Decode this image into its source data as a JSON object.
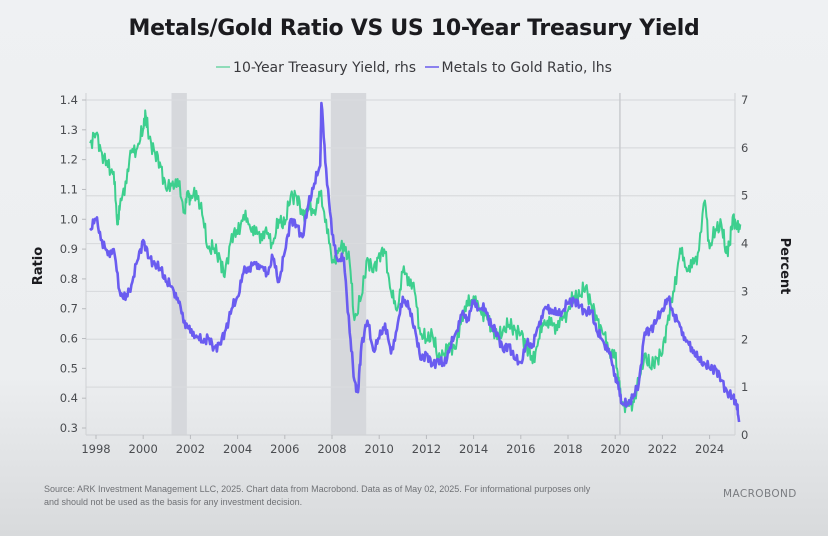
{
  "chart_data": {
    "type": "line",
    "title": "Metals/Gold Ratio VS US 10-Year Treasury Yield",
    "legend": [
      {
        "name": "10-Year Treasury Yield, rhs",
        "color": "#3dcf8e"
      },
      {
        "name": "Metals to Gold Ratio, lhs",
        "color": "#6a5cf0"
      }
    ],
    "legend_position": "top-center",
    "ylabel_left": "Ratio",
    "ylabel_right": "Percent",
    "xlabel": "",
    "ylim_left": [
      0.3,
      1.4
    ],
    "ylim_right": [
      0,
      7
    ],
    "xlim": [
      1997.7,
      2025.6
    ],
    "x_ticks": [
      "1998",
      "2000",
      "2002",
      "2004",
      "2006",
      "2008",
      "2010",
      "2012",
      "2014",
      "2016",
      "2018",
      "2020",
      "2022",
      "2024"
    ],
    "y_ticks_left": [
      "0.3",
      "0.4",
      "0.5",
      "0.6",
      "0.7",
      "0.8",
      "0.9",
      "1.0",
      "1.1",
      "1.2",
      "1.3",
      "1.4"
    ],
    "y_ticks_right": [
      "0",
      "1",
      "2",
      "3",
      "4",
      "5",
      "6",
      "7"
    ],
    "grid": "horizontal",
    "shaded_periods": [
      [
        2001.2,
        2001.85
      ],
      [
        2007.95,
        2009.45
      ]
    ],
    "vertical_marker": 2020.2,
    "series": [
      {
        "name": "10-Year Treasury Yield, rhs",
        "axis": "right",
        "x": [
          1997.75,
          1998.0,
          1998.25,
          1998.5,
          1998.75,
          1998.9,
          1999.0,
          1999.25,
          1999.5,
          1999.75,
          2000.0,
          2000.1,
          2000.25,
          2000.5,
          2000.75,
          2001.0,
          2001.25,
          2001.5,
          2001.75,
          2001.9,
          2002.0,
          2002.25,
          2002.5,
          2002.75,
          2003.0,
          2003.25,
          2003.45,
          2003.75,
          2004.0,
          2004.25,
          2004.5,
          2004.75,
          2005.0,
          2005.25,
          2005.5,
          2005.75,
          2006.0,
          2006.25,
          2006.5,
          2006.75,
          2007.0,
          2007.25,
          2007.5,
          2007.75,
          2008.0,
          2008.25,
          2008.5,
          2008.75,
          2008.95,
          2009.25,
          2009.5,
          2009.75,
          2010.0,
          2010.25,
          2010.5,
          2010.75,
          2011.0,
          2011.25,
          2011.5,
          2011.75,
          2012.0,
          2012.25,
          2012.5,
          2012.75,
          2013.0,
          2013.25,
          2013.5,
          2013.75,
          2014.0,
          2014.25,
          2014.5,
          2014.75,
          2015.0,
          2015.25,
          2015.5,
          2015.75,
          2016.0,
          2016.25,
          2016.5,
          2016.75,
          2017.0,
          2017.25,
          2017.5,
          2017.75,
          2018.0,
          2018.25,
          2018.5,
          2018.75,
          2019.0,
          2019.25,
          2019.5,
          2019.75,
          2020.0,
          2020.15,
          2020.25,
          2020.5,
          2020.75,
          2021.0,
          2021.25,
          2021.5,
          2021.75,
          2022.0,
          2022.25,
          2022.5,
          2022.75,
          2023.0,
          2023.25,
          2023.5,
          2023.8,
          2024.0,
          2024.25,
          2024.5,
          2024.7,
          2024.85,
          2025.0,
          2025.15,
          2025.3
        ],
        "values": [
          6.1,
          6.3,
          5.9,
          5.6,
          5.5,
          4.4,
          4.7,
          5.3,
          5.9,
          6.0,
          6.4,
          6.7,
          6.2,
          5.9,
          5.6,
          5.1,
          5.3,
          5.2,
          4.7,
          5.1,
          4.9,
          5.1,
          4.6,
          3.9,
          3.9,
          3.7,
          3.3,
          4.2,
          4.2,
          4.6,
          4.4,
          4.2,
          4.2,
          4.2,
          4.0,
          4.5,
          4.4,
          5.0,
          5.0,
          4.6,
          4.7,
          4.7,
          5.0,
          4.5,
          3.6,
          3.8,
          4.0,
          3.6,
          2.4,
          2.9,
          3.7,
          3.4,
          3.8,
          3.8,
          3.0,
          2.6,
          3.4,
          3.3,
          3.0,
          2.1,
          2.0,
          2.1,
          1.6,
          1.7,
          1.9,
          1.8,
          2.5,
          2.7,
          2.9,
          2.6,
          2.5,
          2.3,
          2.0,
          2.2,
          2.3,
          2.2,
          2.1,
          1.9,
          1.5,
          2.0,
          2.4,
          2.3,
          2.3,
          2.4,
          2.6,
          2.9,
          2.9,
          3.1,
          2.7,
          2.4,
          2.1,
          1.8,
          1.6,
          1.2,
          0.7,
          0.6,
          0.7,
          1.1,
          1.7,
          1.4,
          1.6,
          1.7,
          2.5,
          3.0,
          3.9,
          3.5,
          3.5,
          3.8,
          4.9,
          3.9,
          4.3,
          4.4,
          3.8,
          4.0,
          4.6,
          4.3,
          4.4
        ]
      },
      {
        "name": "Metals to Gold Ratio, lhs",
        "axis": "left",
        "x": [
          1997.75,
          1998.0,
          1998.25,
          1998.5,
          1998.75,
          1999.0,
          1999.25,
          1999.5,
          1999.75,
          2000.0,
          2000.25,
          2000.5,
          2000.75,
          2001.0,
          2001.25,
          2001.5,
          2001.75,
          2002.0,
          2002.25,
          2002.5,
          2002.75,
          2003.0,
          2003.25,
          2003.5,
          2003.75,
          2004.0,
          2004.25,
          2004.5,
          2004.75,
          2005.0,
          2005.25,
          2005.5,
          2005.75,
          2006.0,
          2006.25,
          2006.5,
          2006.75,
          2007.0,
          2007.25,
          2007.5,
          2007.55,
          2007.75,
          2008.0,
          2008.25,
          2008.5,
          2008.75,
          2008.95,
          2009.1,
          2009.25,
          2009.5,
          2009.75,
          2010.0,
          2010.25,
          2010.5,
          2010.75,
          2011.0,
          2011.25,
          2011.5,
          2011.75,
          2012.0,
          2012.25,
          2012.5,
          2012.75,
          2013.0,
          2013.25,
          2013.5,
          2013.75,
          2014.0,
          2014.25,
          2014.5,
          2014.75,
          2015.0,
          2015.25,
          2015.5,
          2015.75,
          2016.0,
          2016.25,
          2016.5,
          2016.75,
          2017.0,
          2017.25,
          2017.5,
          2017.75,
          2018.0,
          2018.25,
          2018.5,
          2018.75,
          2019.0,
          2019.25,
          2019.5,
          2019.75,
          2020.0,
          2020.15,
          2020.3,
          2020.5,
          2020.75,
          2021.0,
          2021.25,
          2021.5,
          2021.75,
          2022.0,
          2022.25,
          2022.5,
          2022.75,
          2023.0,
          2023.25,
          2023.5,
          2023.75,
          2024.0,
          2024.25,
          2024.5,
          2024.75,
          2025.0,
          2025.15,
          2025.25
        ],
        "values": [
          0.97,
          1.0,
          0.93,
          0.88,
          0.9,
          0.76,
          0.73,
          0.78,
          0.86,
          0.93,
          0.87,
          0.85,
          0.83,
          0.79,
          0.77,
          0.72,
          0.66,
          0.62,
          0.61,
          0.59,
          0.6,
          0.57,
          0.58,
          0.63,
          0.7,
          0.74,
          0.82,
          0.84,
          0.85,
          0.84,
          0.82,
          0.87,
          0.79,
          0.89,
          1.0,
          0.98,
          0.94,
          1.05,
          1.12,
          1.18,
          1.39,
          1.17,
          0.95,
          0.86,
          0.87,
          0.62,
          0.46,
          0.42,
          0.58,
          0.66,
          0.56,
          0.6,
          0.65,
          0.55,
          0.63,
          0.74,
          0.7,
          0.64,
          0.53,
          0.55,
          0.51,
          0.53,
          0.51,
          0.57,
          0.62,
          0.68,
          0.67,
          0.72,
          0.7,
          0.7,
          0.64,
          0.62,
          0.56,
          0.58,
          0.53,
          0.52,
          0.58,
          0.58,
          0.64,
          0.7,
          0.7,
          0.68,
          0.69,
          0.72,
          0.73,
          0.71,
          0.69,
          0.69,
          0.62,
          0.59,
          0.55,
          0.48,
          0.43,
          0.38,
          0.38,
          0.4,
          0.45,
          0.62,
          0.63,
          0.66,
          0.7,
          0.73,
          0.68,
          0.64,
          0.59,
          0.57,
          0.53,
          0.52,
          0.5,
          0.5,
          0.46,
          0.42,
          0.4,
          0.38,
          0.32
        ]
      }
    ]
  },
  "footer": {
    "source": "Source: ARK Investment Management LLC, 2025. Chart data from Macrobond. Data as of May 02, 2025. For informational purposes only",
    "disclaimer": "and should not be used as the basis for any investment decision.",
    "brand": "MACROBOND"
  }
}
